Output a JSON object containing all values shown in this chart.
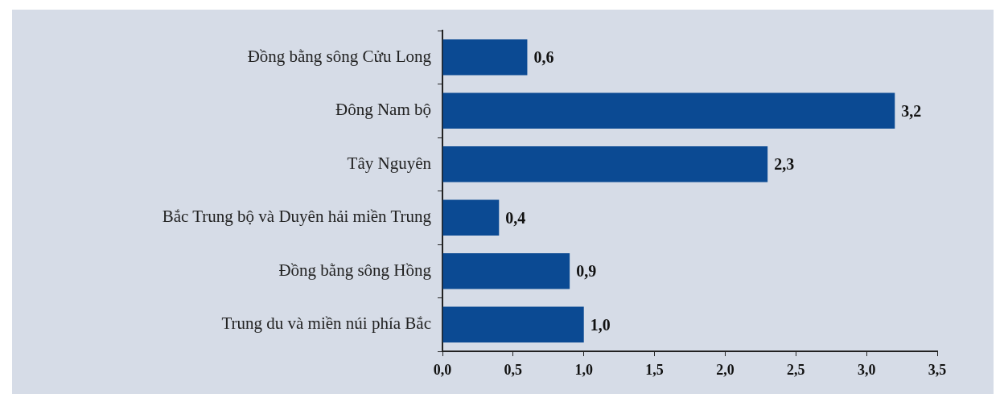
{
  "chart_data": {
    "type": "bar",
    "orientation": "horizontal",
    "categories": [
      "Đồng bằng sông Cửu Long",
      "Đông Nam bộ",
      "Tây Nguyên",
      "Bắc Trung bộ và Duyên hải miền Trung",
      "Đồng bằng sông Hồng",
      "Trung du và miền núi phía Bắc"
    ],
    "values": [
      0.6,
      3.2,
      2.3,
      0.4,
      0.9,
      1.0
    ],
    "value_labels": [
      "0,6",
      "3,2",
      "2,3",
      "0,4",
      "0,9",
      "1,0"
    ],
    "color": "#0b4a93",
    "xlim": [
      0,
      3.5
    ],
    "xticks": [
      {
        "value": 0,
        "label": "0,0"
      },
      {
        "value": 0.5,
        "label": "0,5"
      },
      {
        "value": 1,
        "label": "1,0"
      },
      {
        "value": 1.5,
        "label": "1,5"
      },
      {
        "value": 2,
        "label": "2,0"
      },
      {
        "value": 2.5,
        "label": "2,5"
      },
      {
        "value": 3,
        "label": "3,0"
      },
      {
        "value": 3.5,
        "label": "3,5"
      }
    ],
    "grid": false,
    "legend": false
  }
}
